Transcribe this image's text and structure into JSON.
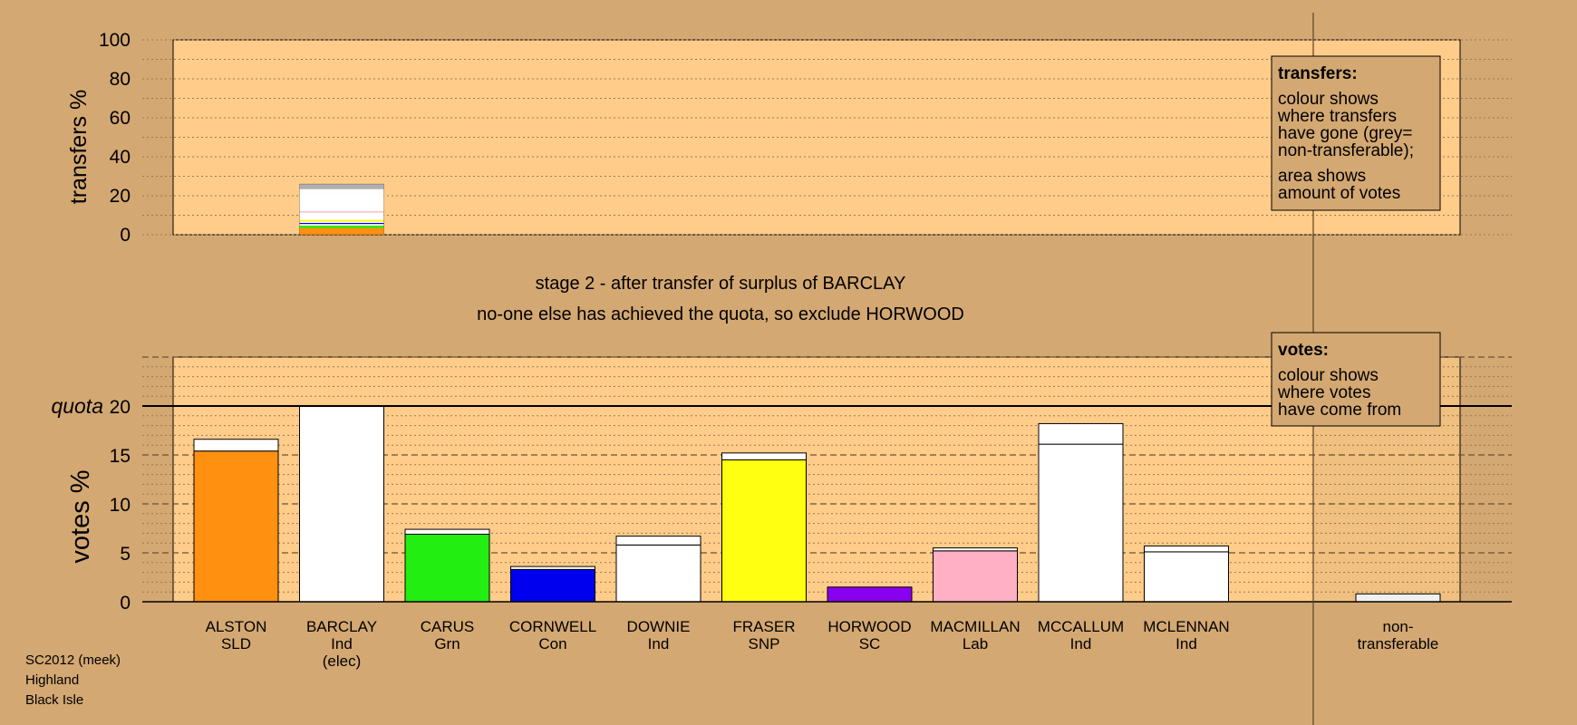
{
  "colors": {
    "background": "#d4a872",
    "plot_background": "#ffcc8a",
    "grid": "#9a7a55"
  },
  "stage_title": "stage 2 - after transfer of surplus of BARCLAY",
  "stage_subtitle": "no-one else has achieved the quota, so exclude HORWOOD",
  "transfers_legend": {
    "title": "transfers:",
    "lines1": [
      "colour shows",
      "where transfers",
      "have gone (grey=",
      "non-transferable);"
    ],
    "lines2": [
      "area shows",
      "amount of votes"
    ]
  },
  "votes_legend": {
    "title": "votes:",
    "lines": [
      "colour shows",
      "where votes",
      "have come from"
    ]
  },
  "footer": {
    "line1": "SC2012 (meek)",
    "line2": "Highland",
    "line3": "Black Isle"
  },
  "chart_data": [
    {
      "type": "bar",
      "name": "transfers",
      "ylabel": "transfers %",
      "ylim": [
        0,
        100
      ],
      "yticks": [
        0,
        20,
        40,
        60,
        80,
        100
      ],
      "grid": true,
      "transferring_candidate_index": 1,
      "transfer_total": 26,
      "segments": [
        {
          "color": "#ff9010",
          "value": 3.5
        },
        {
          "color": "#22ee11",
          "value": 1.2
        },
        {
          "color": "#ffffff",
          "value": 0.8
        },
        {
          "color": "#0000ee",
          "value": 0.6
        },
        {
          "color": "#ffffff",
          "value": 0.6
        },
        {
          "color": "#ffff11",
          "value": 0.9
        },
        {
          "color": "#ffffff",
          "value": 3.8
        },
        {
          "color": "#ffb0c4",
          "value": 0.6
        },
        {
          "color": "#ffffff",
          "value": 9.2
        },
        {
          "color": "#ffffff",
          "value": 2.2
        },
        {
          "color": "#b0b0b0",
          "value": 2.6
        }
      ]
    },
    {
      "type": "bar",
      "name": "votes",
      "ylabel": "votes %",
      "ylim": [
        0,
        25
      ],
      "yticks": [
        0,
        5,
        10,
        15,
        20
      ],
      "quota": 20,
      "quota_label": "quota",
      "grid": true,
      "categories": [
        {
          "name": "ALSTON",
          "party": "SLD",
          "note": ""
        },
        {
          "name": "BARCLAY",
          "party": "Ind",
          "note": "(elec)"
        },
        {
          "name": "CARUS",
          "party": "Grn",
          "note": ""
        },
        {
          "name": "CORNWELL",
          "party": "Con",
          "note": ""
        },
        {
          "name": "DOWNIE",
          "party": "Ind",
          "note": ""
        },
        {
          "name": "FRASER",
          "party": "SNP",
          "note": ""
        },
        {
          "name": "HORWOOD",
          "party": "SC",
          "note": ""
        },
        {
          "name": "MACMILLAN",
          "party": "Lab",
          "note": ""
        },
        {
          "name": "MCCALLUM",
          "party": "Ind",
          "note": ""
        },
        {
          "name": "MCLENNAN",
          "party": "Ind",
          "note": ""
        }
      ],
      "first_preferences": [
        15.4,
        20.0,
        6.9,
        3.3,
        5.8,
        14.5,
        1.5,
        5.2,
        16.1,
        5.1
      ],
      "transfers_received": [
        1.2,
        0,
        0.5,
        0.3,
        0.9,
        0.7,
        0,
        0.3,
        2.1,
        0.6
      ],
      "party_colors": [
        "#ff9010",
        "#ffffff",
        "#22ee11",
        "#0000ee",
        "#ffffff",
        "#ffff11",
        "#8800ee",
        "#ffb0c4",
        "#ffffff",
        "#ffffff"
      ],
      "non_transferable": {
        "label1": "non-",
        "label2": "transferable",
        "value": 0.8
      }
    }
  ]
}
